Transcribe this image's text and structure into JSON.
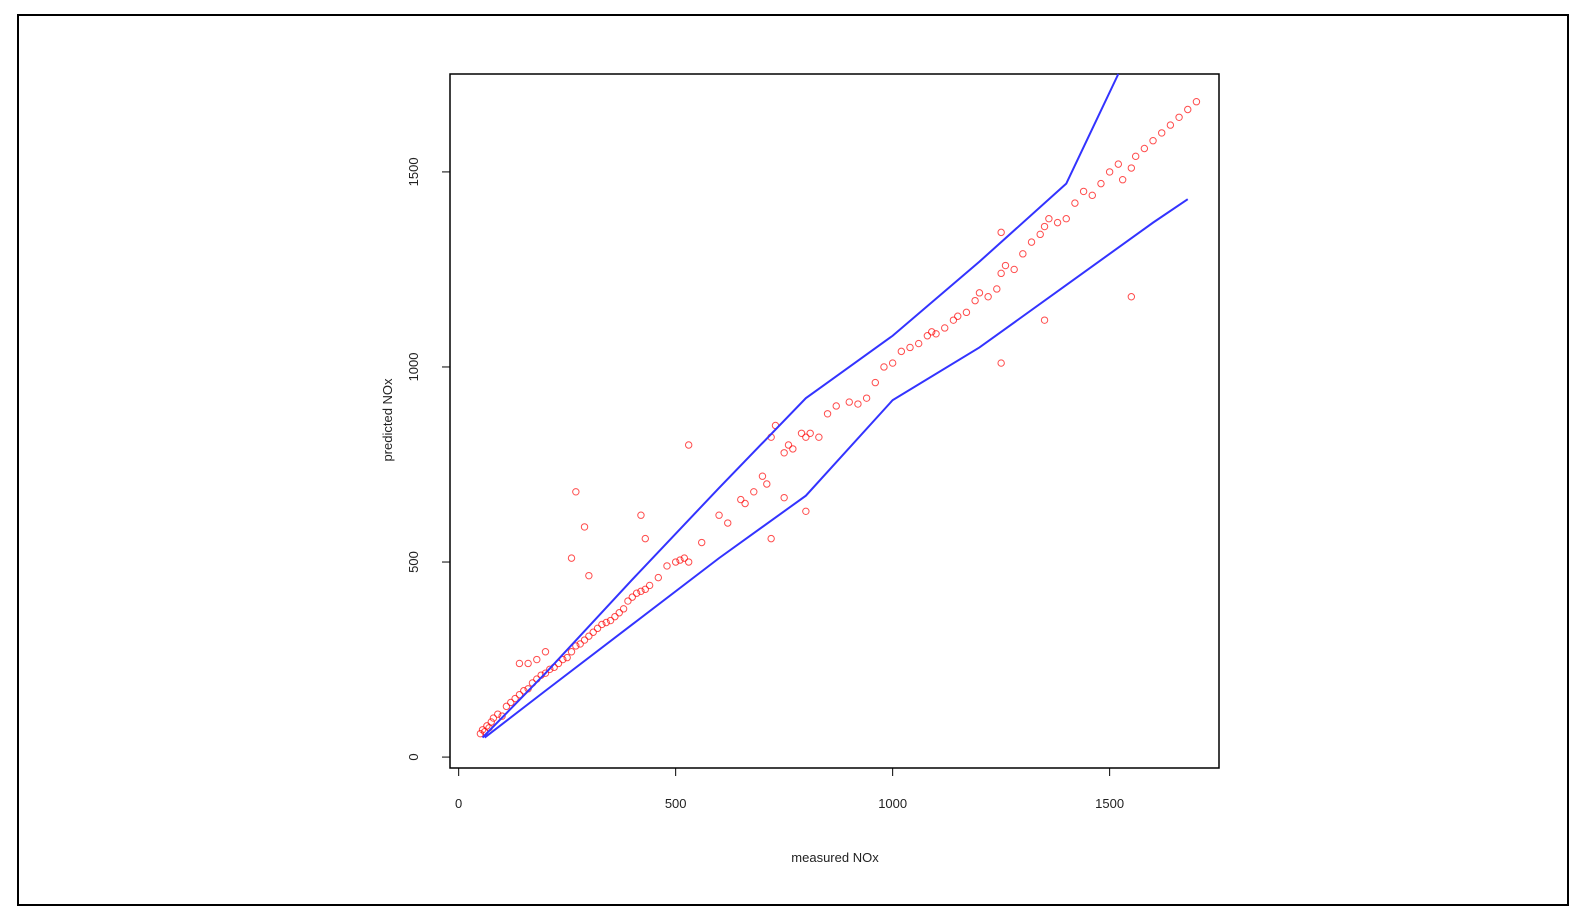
{
  "chart_data": {
    "type": "scatter",
    "x_label": "measured NOx",
    "y_label": "predicted NOx",
    "xlim": [
      -20,
      1752
    ],
    "ylim": [
      -28,
      1751
    ],
    "xticks": [
      0,
      500,
      1000,
      1500
    ],
    "yticks": [
      0,
      500,
      1000,
      1500
    ],
    "points": {
      "color": "#ff0000",
      "x": [
        50,
        55,
        60,
        65,
        70,
        75,
        80,
        90,
        100,
        110,
        120,
        130,
        140,
        150,
        160,
        170,
        180,
        190,
        200,
        210,
        220,
        230,
        240,
        250,
        260,
        270,
        280,
        290,
        300,
        310,
        320,
        330,
        340,
        350,
        360,
        370,
        380,
        390,
        400,
        410,
        420,
        430,
        440,
        460,
        480,
        500,
        510,
        520,
        530,
        560,
        600,
        620,
        650,
        660,
        680,
        700,
        710,
        720,
        750,
        760,
        770,
        790,
        800,
        810,
        830,
        850,
        870,
        900,
        920,
        940,
        960,
        980,
        1000,
        1020,
        1040,
        1060,
        1080,
        1090,
        1100,
        1120,
        1140,
        1150,
        1170,
        1190,
        1200,
        1220,
        1240,
        1250,
        1260,
        1280,
        1300,
        1320,
        1340,
        1350,
        1360,
        1380,
        1400,
        1420,
        1440,
        1460,
        1480,
        1500,
        1520,
        1530,
        1550,
        1560,
        1580,
        1600,
        1620,
        1640,
        1660,
        1680,
        1700,
        260,
        270,
        290,
        300,
        420,
        430,
        530,
        720,
        730,
        750,
        800,
        1250,
        1350,
        1550,
        1250,
        140,
        160,
        180,
        200
      ],
      "y": [
        60,
        70,
        65,
        80,
        75,
        90,
        100,
        110,
        105,
        130,
        140,
        150,
        160,
        170,
        175,
        190,
        200,
        210,
        215,
        225,
        230,
        240,
        250,
        255,
        270,
        285,
        290,
        300,
        310,
        320,
        330,
        340,
        345,
        350,
        360,
        370,
        380,
        400,
        410,
        420,
        425,
        430,
        440,
        460,
        490,
        500,
        505,
        510,
        500,
        550,
        620,
        600,
        660,
        650,
        680,
        720,
        700,
        820,
        780,
        800,
        790,
        830,
        820,
        830,
        820,
        880,
        900,
        910,
        905,
        920,
        960,
        1000,
        1010,
        1040,
        1050,
        1060,
        1080,
        1090,
        1085,
        1100,
        1120,
        1130,
        1140,
        1170,
        1190,
        1180,
        1200,
        1240,
        1260,
        1250,
        1290,
        1320,
        1340,
        1360,
        1380,
        1370,
        1380,
        1420,
        1450,
        1440,
        1470,
        1500,
        1520,
        1480,
        1510,
        1540,
        1560,
        1580,
        1600,
        1620,
        1640,
        1660,
        1680,
        510,
        680,
        590,
        465,
        620,
        560,
        800,
        560,
        850,
        665,
        630,
        1010,
        1120,
        1180,
        1345,
        240,
        240,
        250,
        270
      ]
    },
    "lines": [
      {
        "color": "#3333ff",
        "x": [
          55,
          200,
          400,
          600,
          800,
          1000,
          1200,
          1400,
          1520
        ],
        "y": [
          50,
          215,
          455,
          690,
          920,
          1080,
          1270,
          1470,
          1751
        ]
      },
      {
        "color": "#3333ff",
        "x": [
          60,
          200,
          400,
          600,
          800,
          1000,
          1200,
          1400,
          1600,
          1680
        ],
        "y": [
          50,
          170,
          340,
          510,
          670,
          915,
          1050,
          1210,
          1370,
          1430
        ]
      }
    ]
  }
}
